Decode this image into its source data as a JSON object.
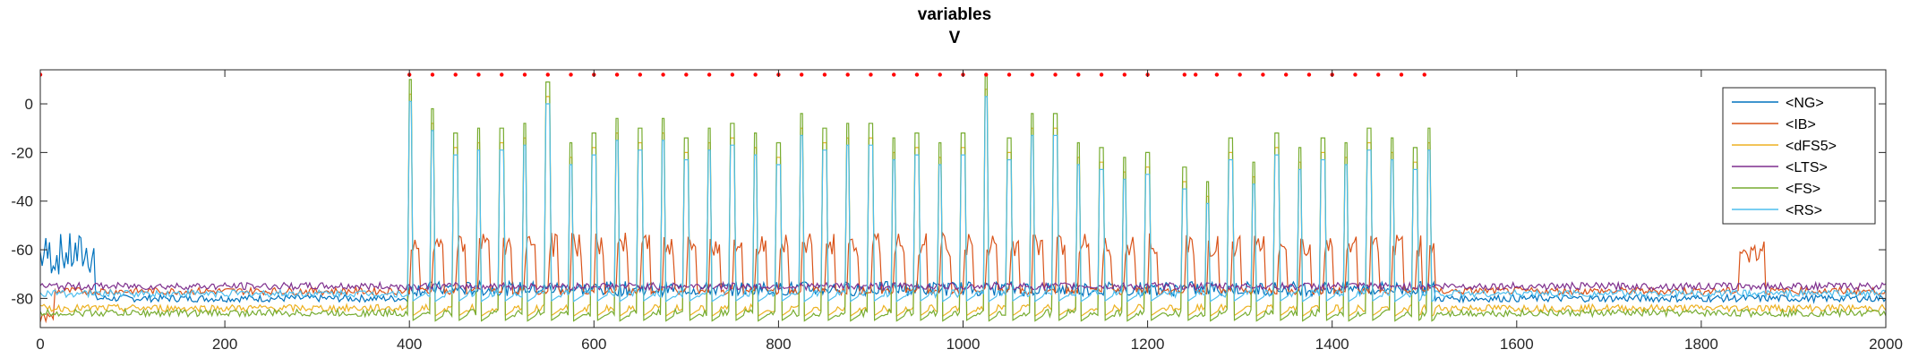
{
  "chart_data": {
    "type": "line",
    "title": "variables",
    "subtitle": "V",
    "xlabel": "",
    "ylabel": "",
    "xlim": [
      0,
      2000
    ],
    "ylim": [
      -92,
      14
    ],
    "xticks": [
      0,
      200,
      400,
      600,
      800,
      1000,
      1200,
      1400,
      1600,
      1800,
      2000
    ],
    "yticks": [
      0,
      -20,
      -40,
      -60,
      -80
    ],
    "grid": false,
    "legend_position": "top-right",
    "series": [
      {
        "name": "<NG>",
        "color": "#0072BD",
        "baseline": -80
      },
      {
        "name": "<IB>",
        "color": "#D95319",
        "baseline": -77
      },
      {
        "name": "<dFS5>",
        "color": "#EDB120",
        "baseline": -84
      },
      {
        "name": "<LTS>",
        "color": "#7E2F8E",
        "baseline": -75
      },
      {
        "name": "<FS>",
        "color": "#77AC30",
        "baseline": -86
      },
      {
        "name": "<RS>",
        "color": "#4DBEEE",
        "baseline": -78
      }
    ],
    "spike_times": [
      400,
      425,
      450,
      475,
      500,
      525,
      550,
      575,
      600,
      625,
      650,
      675,
      700,
      725,
      750,
      775,
      800,
      825,
      850,
      875,
      900,
      925,
      950,
      975,
      1000,
      1025,
      1050,
      1075,
      1100,
      1125,
      1150,
      1175,
      1200,
      1240,
      1265,
      1290,
      1315,
      1340,
      1365,
      1390,
      1415,
      1440,
      1465,
      1490,
      1505
    ],
    "spike_peaks": [
      10,
      -2,
      -12,
      -10,
      -10,
      -8,
      9,
      -16,
      -12,
      -6,
      -10,
      -6,
      -14,
      -10,
      -8,
      -12,
      -16,
      -4,
      -10,
      -8,
      -8,
      -14,
      -12,
      -16,
      -12,
      12,
      -14,
      -4,
      -4,
      -16,
      -18,
      -22,
      -20,
      -26,
      -32,
      -14,
      -24,
      -12,
      -18,
      -14,
      -16,
      -10,
      -14,
      -18,
      -10
    ],
    "marker": {
      "y": 12,
      "color": "#ff0000",
      "x": [
        0,
        400,
        425,
        450,
        475,
        500,
        525,
        550,
        575,
        600,
        625,
        650,
        675,
        700,
        725,
        750,
        775,
        800,
        825,
        850,
        875,
        900,
        925,
        950,
        975,
        1000,
        1025,
        1050,
        1075,
        1100,
        1125,
        1150,
        1175,
        1200,
        1240,
        1252,
        1275,
        1300,
        1325,
        1350,
        1375,
        1400,
        1425,
        1450,
        1475,
        1500
      ]
    }
  }
}
